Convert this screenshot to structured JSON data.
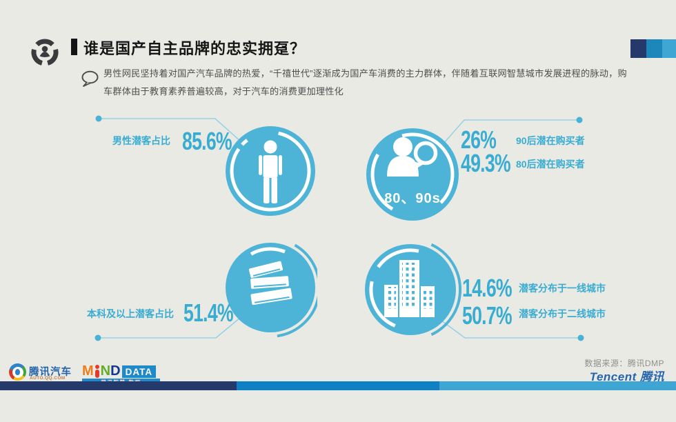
{
  "header": {
    "title": "谁是国产自主品牌的忠实拥趸？"
  },
  "intro": {
    "lines": [
      "男性网民坚持着对国产汽车品牌的热爱，“千禧世代”逐渐成为国产车消费的主力群体，伴随着互联网智慧城市发展进程的脉动，购",
      "车群体由于教育素养普遍较高，对于汽车的消费更加理性化"
    ]
  },
  "stats": {
    "male": {
      "label": "男性潜客占比",
      "value": "85.6%"
    },
    "age": {
      "badge": "80、90s",
      "items": [
        {
          "value": "26%",
          "label": "90后潜在购买者"
        },
        {
          "value": "49.3%",
          "label": "80后潜在购买者"
        }
      ]
    },
    "education": {
      "label": "本科及以上潜客占比",
      "value": "51.4%"
    },
    "city": {
      "items": [
        {
          "value": "14.6%",
          "label": "潜客分布于一线城市"
        },
        {
          "value": "50.7%",
          "label": "潜客分布于二线城市"
        }
      ]
    }
  },
  "footer": {
    "auto_logo": {
      "name": "腾讯汽车",
      "caption": "AUTO.QQ.COM"
    },
    "minddata": {
      "m": "M",
      "n": "N",
      "d": "D",
      "data_label": "DATA",
      "caption": "腾讯智慧·数据"
    },
    "source": "数据来源：腾讯DMP",
    "tencent_logo": "Tencent 腾讯"
  },
  "colors": {
    "accent": "#4db4d7",
    "accent_text": "#39acd2",
    "navy": "#253a6b",
    "blue": "#0e80c3",
    "light_blue": "#3fa5d3",
    "tencent_blue": "#2565ae"
  },
  "chart_data": {
    "type": "table",
    "title": "谁是国产自主品牌的忠实拥趸？",
    "stats": [
      {
        "label": "男性潜客占比",
        "value": 85.6,
        "unit": "%"
      },
      {
        "label": "90后潜在购买者",
        "value": 26,
        "unit": "%"
      },
      {
        "label": "80后潜在购买者",
        "value": 49.3,
        "unit": "%"
      },
      {
        "label": "本科及以上潜客占比",
        "value": 51.4,
        "unit": "%"
      },
      {
        "label": "潜客分布于一线城市",
        "value": 14.6,
        "unit": "%"
      },
      {
        "label": "潜客分布于二线城市",
        "value": 50.7,
        "unit": "%"
      }
    ],
    "source": "腾讯DMP"
  }
}
